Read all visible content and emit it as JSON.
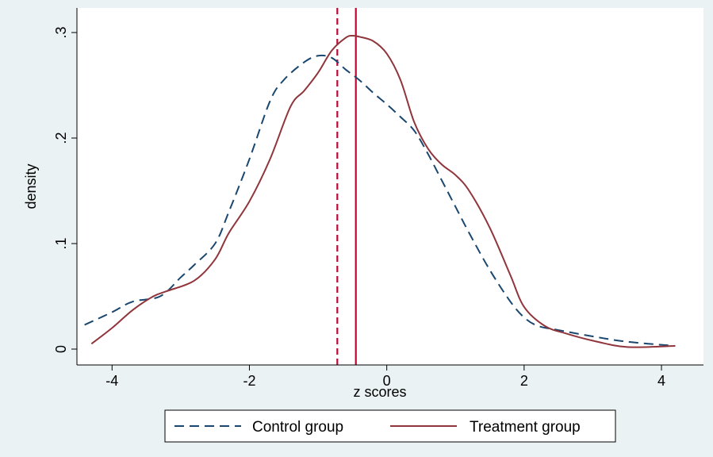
{
  "chart_data": {
    "type": "line",
    "xlabel": "z scores",
    "ylabel": "density",
    "xlim": [
      -4.5,
      4.3
    ],
    "ylim": [
      0,
      0.3
    ],
    "xticks": [
      -4,
      -2,
      0,
      2,
      4
    ],
    "xtick_labels": [
      "-4",
      "-2",
      "0",
      "2",
      "4"
    ],
    "yticks": [
      0,
      0.1,
      0.2,
      0.3
    ],
    "ytick_labels": [
      "0",
      ".1",
      ".2",
      ".3"
    ],
    "grid": false,
    "legend_position": "bottom",
    "series": [
      {
        "name": "Control group",
        "color": "#1a476f",
        "dash": "dashed",
        "x": [
          -4.4,
          -4.0,
          -3.7,
          -3.3,
          -3.0,
          -2.8,
          -2.5,
          -2.3,
          -2.0,
          -1.7,
          -1.5,
          -1.2,
          -1.0,
          -0.8,
          -0.6,
          -0.4,
          -0.2,
          0.0,
          0.2,
          0.4,
          0.6,
          0.8,
          1.0,
          1.2,
          1.5,
          1.8,
          2.0,
          2.2,
          2.5,
          3.0,
          3.5,
          4.2
        ],
        "y": [
          0.023,
          0.035,
          0.045,
          0.05,
          0.068,
          0.08,
          0.1,
          0.13,
          0.18,
          0.235,
          0.255,
          0.272,
          0.278,
          0.276,
          0.265,
          0.255,
          0.243,
          0.232,
          0.22,
          0.207,
          0.185,
          0.16,
          0.135,
          0.11,
          0.075,
          0.045,
          0.03,
          0.022,
          0.018,
          0.012,
          0.007,
          0.003
        ]
      },
      {
        "name": "Treatment group",
        "color": "#90353b",
        "dash": "solid",
        "x": [
          -4.3,
          -4.0,
          -3.7,
          -3.4,
          -3.2,
          -2.8,
          -2.5,
          -2.3,
          -2.0,
          -1.7,
          -1.4,
          -1.2,
          -1.0,
          -0.8,
          -0.6,
          -0.5,
          -0.4,
          -0.2,
          0.0,
          0.2,
          0.4,
          0.6,
          0.8,
          1.0,
          1.2,
          1.5,
          1.8,
          2.0,
          2.3,
          2.6,
          3.0,
          3.5,
          4.2
        ],
        "y": [
          0.005,
          0.02,
          0.037,
          0.05,
          0.055,
          0.065,
          0.085,
          0.11,
          0.14,
          0.18,
          0.23,
          0.245,
          0.262,
          0.283,
          0.295,
          0.297,
          0.296,
          0.292,
          0.28,
          0.255,
          0.215,
          0.19,
          0.175,
          0.165,
          0.15,
          0.115,
          0.07,
          0.04,
          0.022,
          0.015,
          0.008,
          0.002,
          0.003
        ]
      }
    ],
    "reference_lines": [
      {
        "axis": "x",
        "value": -0.72,
        "color": "#c10534",
        "dash": "dashed"
      },
      {
        "axis": "x",
        "value": -0.45,
        "color": "#c10534",
        "dash": "solid"
      }
    ]
  }
}
